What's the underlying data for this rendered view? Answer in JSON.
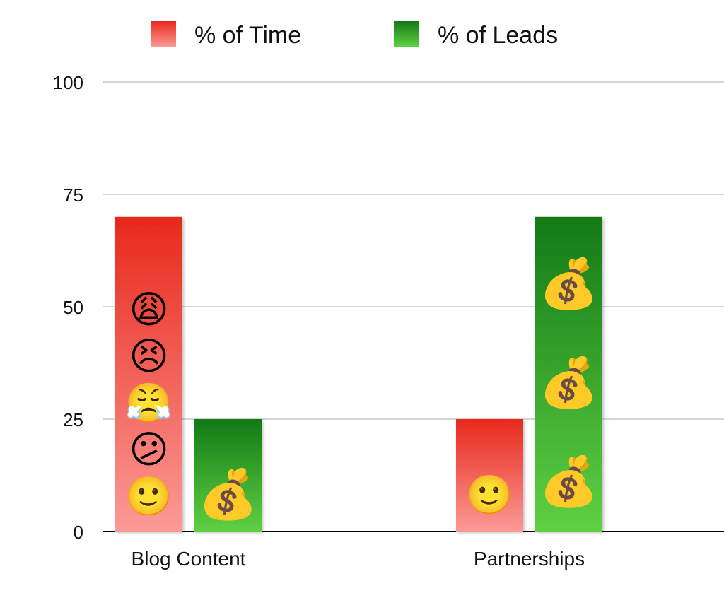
{
  "chart_data": {
    "type": "bar",
    "title": "",
    "xlabel": "",
    "ylabel": "",
    "categories": [
      "Blog Content",
      "Partnerships"
    ],
    "series": [
      {
        "name": "% of Time",
        "values": [
          70,
          25
        ],
        "color_top": "#e8291c",
        "color_bottom": "#fb9a96"
      },
      {
        "name": "% of Leads",
        "values": [
          25,
          70
        ],
        "color_top": "#137a17",
        "color_bottom": "#5fd043"
      }
    ],
    "ylim": [
      0,
      100
    ],
    "yticks": [
      "0",
      "25",
      "50",
      "75",
      "100"
    ],
    "grid": true,
    "legend_position": "top",
    "annotations": [
      {
        "series": 0,
        "category": 0,
        "icons": [
          "slightly-smiling-face-icon",
          "confused-face-icon",
          "steaming-face-icon",
          "persevering-face-icon",
          "weary-face-icon"
        ],
        "glyphs": [
          "🙂",
          "😕",
          "😤",
          "😣",
          "😩"
        ]
      },
      {
        "series": 1,
        "category": 0,
        "icons": [
          "money-bag-icon"
        ],
        "glyphs": [
          "💰"
        ]
      },
      {
        "series": 0,
        "category": 1,
        "icons": [
          "slightly-smiling-face-icon"
        ],
        "glyphs": [
          "🙂"
        ]
      },
      {
        "series": 1,
        "category": 1,
        "icons": [
          "money-bag-icon",
          "money-bag-icon",
          "money-bag-icon"
        ],
        "glyphs": [
          "💰",
          "💰",
          "💰"
        ]
      }
    ]
  }
}
